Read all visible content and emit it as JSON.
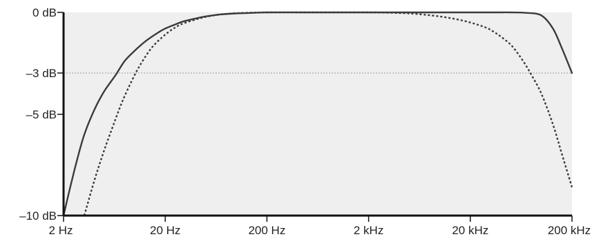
{
  "chart_data": {
    "type": "line",
    "x_scale": "log",
    "x_ticks": [
      {
        "label": "2 Hz",
        "value": 2
      },
      {
        "label": "20 Hz",
        "value": 20
      },
      {
        "label": "200 Hz",
        "value": 200
      },
      {
        "label": "2 kHz",
        "value": 2000
      },
      {
        "label": "20 kHz",
        "value": 20000
      },
      {
        "label": "200 kHz",
        "value": 200000
      }
    ],
    "y_ticks": [
      {
        "label": "0 dB",
        "value": 0
      },
      {
        "label": "–3 dB",
        "value": -3
      },
      {
        "label": "–5 dB",
        "value": -5
      },
      {
        "label": "–10 dB",
        "value": -10
      }
    ],
    "xlim": [
      2,
      200000
    ],
    "ylim": [
      -10,
      0
    ],
    "reference_line": {
      "value": -3,
      "style": "dotted",
      "color": "#9a9a9a"
    },
    "grid": false,
    "series": [
      {
        "style": "solid",
        "color": "#3a3a3a",
        "x": [
          2,
          2.3,
          2.7,
          3.2,
          4,
          5,
          6.5,
          8,
          10,
          13,
          17,
          20,
          25,
          30,
          40,
          50,
          70,
          100,
          150,
          200,
          500,
          1000,
          2000,
          5000,
          10000,
          20000,
          30000,
          40000,
          50000,
          70000,
          100000,
          130000,
          160000,
          200000
        ],
        "y": [
          -10,
          -8.7,
          -7.3,
          -6.0,
          -4.8,
          -3.9,
          -3.1,
          -2.4,
          -1.9,
          -1.4,
          -1.0,
          -0.8,
          -0.6,
          -0.45,
          -0.3,
          -0.2,
          -0.1,
          -0.05,
          -0.02,
          0,
          0,
          0,
          0,
          0,
          0,
          0,
          0,
          0,
          0,
          -0.02,
          -0.15,
          -0.8,
          -1.8,
          -3.0
        ]
      },
      {
        "style": "dashed",
        "color": "#3a3a3a",
        "x": [
          3.2,
          4,
          5,
          6,
          7,
          8,
          10,
          12,
          15,
          20,
          25,
          30,
          40,
          50,
          70,
          100,
          150,
          200,
          500,
          1000,
          2000,
          4000,
          6000,
          10000,
          15000,
          20000,
          25000,
          30000,
          35000,
          40000,
          50000,
          60000,
          70000,
          80000,
          100000,
          130000,
          160000,
          200000
        ],
        "y": [
          -10,
          -8.3,
          -6.8,
          -5.7,
          -4.8,
          -4.1,
          -3.1,
          -2.4,
          -1.7,
          -1.1,
          -0.75,
          -0.55,
          -0.35,
          -0.22,
          -0.1,
          -0.04,
          -0.01,
          0,
          0,
          0,
          0,
          -0.03,
          -0.08,
          -0.2,
          -0.35,
          -0.5,
          -0.65,
          -0.8,
          -1.0,
          -1.2,
          -1.6,
          -2.1,
          -2.6,
          -3.1,
          -4.0,
          -5.5,
          -7.0,
          -8.6
        ]
      }
    ]
  }
}
